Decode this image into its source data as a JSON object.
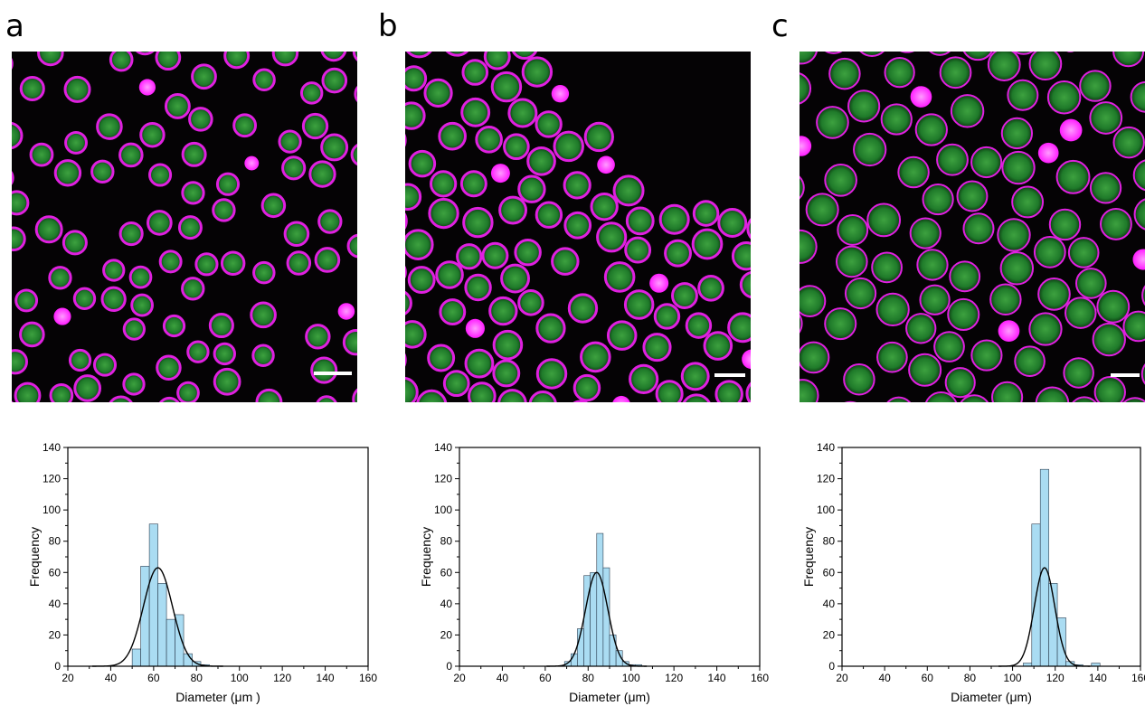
{
  "panels": [
    {
      "letter": "a"
    },
    {
      "letter": "b"
    },
    {
      "letter": "c"
    }
  ],
  "colors": {
    "bar_fill": "#aadcf2",
    "bar_stroke": "#2c3e50",
    "fit_line": "#000000",
    "shell_magenta": "#e020e0",
    "core_green": "#1f7a2a",
    "background": "#050305"
  },
  "chart_data": [
    {
      "type": "bar",
      "panel": "a",
      "xlabel": "Diameter (μm )",
      "ylabel": "Frequency",
      "xlim": [
        20,
        160
      ],
      "ylim": [
        0,
        140
      ],
      "xticks": [
        20,
        40,
        60,
        80,
        100,
        120,
        140,
        160
      ],
      "yticks": [
        0,
        20,
        40,
        60,
        80,
        100,
        120,
        140
      ],
      "bin_width": 4,
      "bins": [
        50,
        54,
        58,
        62,
        66,
        70,
        74,
        78,
        82
      ],
      "values": [
        11,
        64,
        91,
        53,
        30,
        33,
        8,
        3,
        1
      ],
      "fit": {
        "type": "gaussian",
        "mean": 62,
        "sigma": 6.8,
        "peak": 63
      }
    },
    {
      "type": "bar",
      "panel": "b",
      "xlabel": "Diameter (μm)",
      "ylabel": "Frequency",
      "xlim": [
        20,
        160
      ],
      "ylim": [
        0,
        140
      ],
      "xticks": [
        20,
        40,
        60,
        80,
        100,
        120,
        140,
        160
      ],
      "yticks": [
        0,
        20,
        40,
        60,
        80,
        100,
        120,
        140
      ],
      "bin_width": 3,
      "bins": [
        69,
        72,
        75,
        78,
        81,
        84,
        87,
        90,
        93,
        96,
        99,
        102
      ],
      "values": [
        3,
        8,
        24,
        58,
        60,
        85,
        63,
        20,
        10,
        3,
        1,
        1
      ],
      "fit": {
        "type": "gaussian",
        "mean": 84,
        "sigma": 5.2,
        "peak": 60
      }
    },
    {
      "type": "bar",
      "panel": "c",
      "xlabel": "Diameter (μm)",
      "ylabel": "Frequency",
      "xlim": [
        20,
        160
      ],
      "ylim": [
        0,
        140
      ],
      "xticks": [
        20,
        40,
        60,
        80,
        100,
        120,
        140,
        160
      ],
      "yticks": [
        0,
        20,
        40,
        60,
        80,
        100,
        120,
        140
      ],
      "bin_width": 4,
      "bins": [
        105,
        109,
        113,
        117,
        121,
        125,
        129,
        137
      ],
      "values": [
        2,
        91,
        126,
        53,
        31,
        3,
        1,
        2
      ],
      "fit": {
        "type": "gaussian",
        "mean": 115,
        "sigma": 4.8,
        "peak": 63
      }
    }
  ]
}
